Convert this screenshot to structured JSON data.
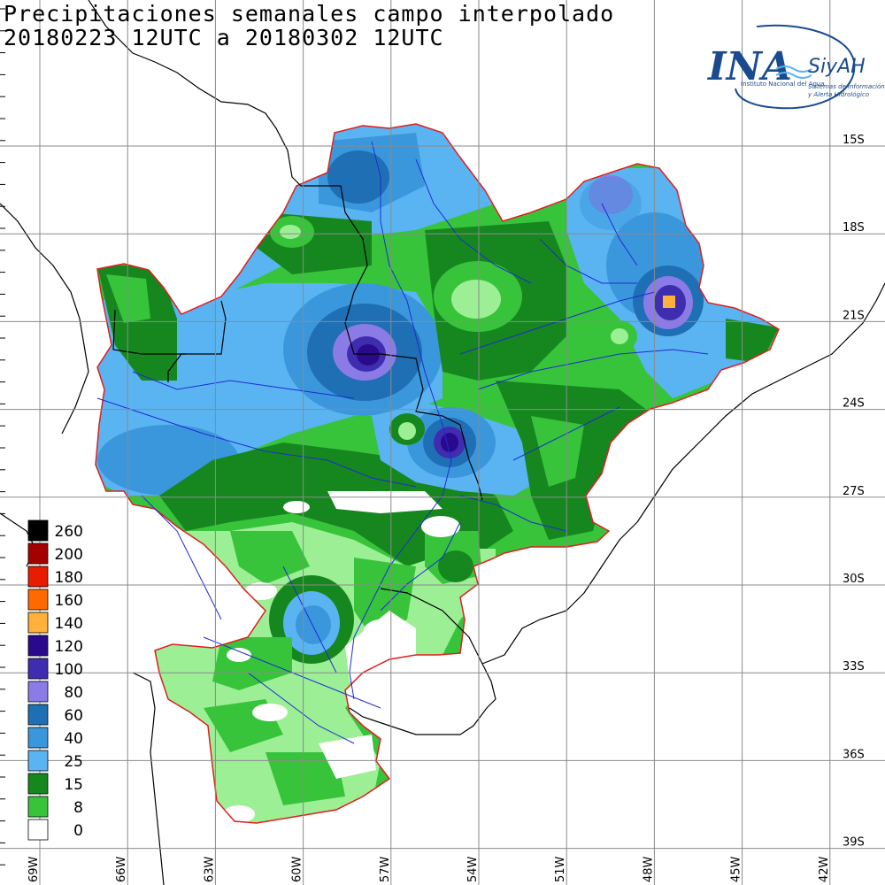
{
  "title": {
    "line1": "Precipitaciones semanales campo interpolado",
    "line2": "20180223 12UTC a 20180302 12UTC"
  },
  "logo": {
    "main": "INA",
    "side": "SiyAH",
    "subtitle": "Instituto Nacional del Agua",
    "tagline1": "Sistemas de información",
    "tagline2": "y Alerta Hidrológico"
  },
  "latitude_labels": [
    "15S",
    "18S",
    "21S",
    "24S",
    "27S",
    "30S",
    "33S",
    "36S",
    "39S"
  ],
  "longitude_labels": [
    "69W",
    "66W",
    "63W",
    "60W",
    "57W",
    "54W",
    "51W",
    "48W",
    "45W",
    "42W"
  ],
  "legend": [
    {
      "label": "260",
      "color": "#000000"
    },
    {
      "label": "200",
      "color": "#a50000"
    },
    {
      "label": "180",
      "color": "#e81c00"
    },
    {
      "label": "160",
      "color": "#ff6a00"
    },
    {
      "label": "140",
      "color": "#ffb13c"
    },
    {
      "label": "120",
      "color": "#2a0a8c"
    },
    {
      "label": "100",
      "color": "#3f2db0"
    },
    {
      "label": "80",
      "color": "#8b7be6"
    },
    {
      "label": "60",
      "color": "#1f6fb5"
    },
    {
      "label": "40",
      "color": "#3b97dc"
    },
    {
      "label": "25",
      "color": "#5ab4f2"
    },
    {
      "label": "15",
      "color": "#16871f"
    },
    {
      "label": "8",
      "color": "#37c43b"
    },
    {
      "label": "0",
      "color": "#ffffff"
    }
  ],
  "colors": {
    "grid": "#8a8a8a",
    "basin_outline": "#e01e1e",
    "rivers": "#1f2ad6",
    "borders": "#000000",
    "light_green": "#9cef95"
  }
}
